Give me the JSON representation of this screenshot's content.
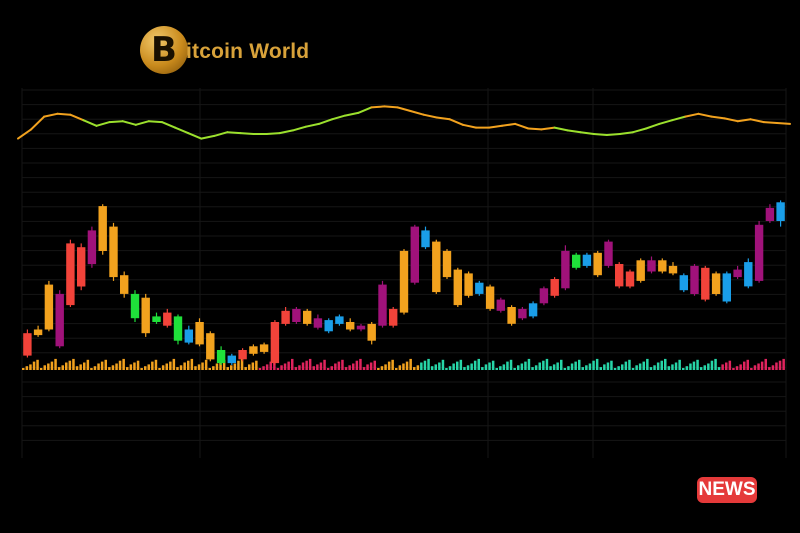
{
  "brand": {
    "logo_glyph": "B",
    "logo_text": "itcoin World",
    "logo_color": "#d8a23a"
  },
  "badge": {
    "label": "NEWS",
    "color": "#e53a3a"
  },
  "chart_data": {
    "type": "candlestick",
    "grid": true,
    "ylim": [
      0,
      100
    ],
    "line_ylim": [
      0,
      100
    ],
    "line": {
      "values": [
        58,
        68,
        82,
        85,
        84,
        78,
        72,
        76,
        77,
        73,
        77,
        76,
        70,
        64,
        58,
        61,
        65,
        64,
        63,
        63,
        64,
        67,
        71,
        74,
        79,
        83,
        86,
        92,
        93,
        92,
        88,
        84,
        81,
        79,
        73,
        70,
        70,
        72,
        74,
        69,
        68,
        70,
        67,
        65,
        63,
        62,
        63,
        65,
        69,
        74,
        78,
        82,
        85,
        82,
        80,
        77,
        79,
        76,
        75,
        74
      ],
      "colors": [
        "#f2a21e",
        "#f2a21e",
        "#f2a21e",
        "#f2a21e",
        "#f2a21e",
        "#9be02d",
        "#9be02d",
        "#9be02d",
        "#9be02d",
        "#9be02d",
        "#9be02d",
        "#9be02d",
        "#9be02d",
        "#9be02d",
        "#9be02d",
        "#9be02d",
        "#9be02d",
        "#9be02d",
        "#9be02d",
        "#9be02d",
        "#9be02d",
        "#9be02d",
        "#9be02d",
        "#9be02d",
        "#9be02d",
        "#9be02d",
        "#9be02d",
        "#f2a21e",
        "#f2a21e",
        "#f2a21e",
        "#f2a21e",
        "#f2a21e",
        "#f2a21e",
        "#f2a21e",
        "#f2a21e",
        "#f2a21e",
        "#f2a21e",
        "#f2a21e",
        "#f2a21e",
        "#f2a21e",
        "#f2a21e",
        "#9be02d",
        "#9be02d",
        "#9be02d",
        "#9be02d",
        "#9be02d",
        "#9be02d",
        "#9be02d",
        "#9be02d",
        "#9be02d",
        "#9be02d",
        "#f2a21e",
        "#f2a21e",
        "#f2a21e",
        "#f2a21e",
        "#f2a21e",
        "#f2a21e",
        "#f2a21e",
        "#f2a21e",
        "#f2a21e"
      ]
    },
    "candles": [
      {
        "o": 5,
        "c": 17,
        "h": 19,
        "l": 4,
        "color": "#f2433a"
      },
      {
        "o": 16,
        "c": 19,
        "h": 21,
        "l": 15,
        "color": "#f2a21e"
      },
      {
        "o": 19,
        "c": 43,
        "h": 45,
        "l": 18,
        "color": "#f2a21e"
      },
      {
        "o": 38,
        "c": 10,
        "h": 40,
        "l": 9,
        "color": "#a0127a"
      },
      {
        "o": 32,
        "c": 65,
        "h": 67,
        "l": 31,
        "color": "#f2433a"
      },
      {
        "o": 63,
        "c": 42,
        "h": 65,
        "l": 40,
        "color": "#f2433a"
      },
      {
        "o": 54,
        "c": 72,
        "h": 74,
        "l": 52,
        "color": "#a0127a"
      },
      {
        "o": 85,
        "c": 61,
        "h": 86,
        "l": 59,
        "color": "#f2a21e"
      },
      {
        "o": 74,
        "c": 47,
        "h": 76,
        "l": 45,
        "color": "#f2a21e"
      },
      {
        "o": 48,
        "c": 38,
        "h": 50,
        "l": 36,
        "color": "#f2a21e"
      },
      {
        "o": 38,
        "c": 25,
        "h": 40,
        "l": 23,
        "color": "#1fe03a"
      },
      {
        "o": 36,
        "c": 17,
        "h": 38,
        "l": 15,
        "color": "#f2a21e"
      },
      {
        "o": 26,
        "c": 23,
        "h": 28,
        "l": 22,
        "color": "#1fe03a"
      },
      {
        "o": 28,
        "c": 21,
        "h": 30,
        "l": 20,
        "color": "#f2433a"
      },
      {
        "o": 26,
        "c": 13,
        "h": 27,
        "l": 11,
        "color": "#1fe03a"
      },
      {
        "o": 19,
        "c": 12,
        "h": 21,
        "l": 11,
        "color": "#1a9ee8"
      },
      {
        "o": 23,
        "c": 11,
        "h": 25,
        "l": 10,
        "color": "#f2a21e"
      },
      {
        "o": 17,
        "c": 3,
        "h": 18,
        "l": 2,
        "color": "#f2a21e"
      },
      {
        "o": 8,
        "c": 1,
        "h": 10,
        "l": 0,
        "color": "#1fe03a"
      },
      {
        "o": 5,
        "c": 1,
        "h": 6,
        "l": 0,
        "color": "#1a9ee8"
      },
      {
        "o": 8,
        "c": 3,
        "h": 9,
        "l": 2,
        "color": "#f2433a"
      },
      {
        "o": 6,
        "c": 10,
        "h": 11,
        "l": 5,
        "color": "#f2a21e"
      },
      {
        "o": 7,
        "c": 11,
        "h": 12,
        "l": 6,
        "color": "#f2a21e"
      },
      {
        "o": 23,
        "c": 1,
        "h": 24,
        "l": 0,
        "color": "#f2433a"
      },
      {
        "o": 22,
        "c": 29,
        "h": 31,
        "l": 21,
        "color": "#f2433a"
      },
      {
        "o": 23,
        "c": 30,
        "h": 31,
        "l": 22,
        "color": "#a0127a"
      },
      {
        "o": 29,
        "c": 22,
        "h": 30,
        "l": 21,
        "color": "#f2a21e"
      },
      {
        "o": 20,
        "c": 25,
        "h": 27,
        "l": 19,
        "color": "#a0127a"
      },
      {
        "o": 24,
        "c": 18,
        "h": 25,
        "l": 17,
        "color": "#1a9ee8"
      },
      {
        "o": 22,
        "c": 26,
        "h": 27,
        "l": 21,
        "color": "#1a9ee8"
      },
      {
        "o": 19,
        "c": 23,
        "h": 25,
        "l": 18,
        "color": "#f2a21e"
      },
      {
        "o": 21,
        "c": 19,
        "h": 22,
        "l": 18,
        "color": "#a0127a"
      },
      {
        "o": 13,
        "c": 22,
        "h": 23,
        "l": 11,
        "color": "#f2a21e"
      },
      {
        "o": 21,
        "c": 43,
        "h": 45,
        "l": 20,
        "color": "#a0127a"
      },
      {
        "o": 21,
        "c": 30,
        "h": 31,
        "l": 20,
        "color": "#f2433a"
      },
      {
        "o": 28,
        "c": 61,
        "h": 62,
        "l": 27,
        "color": "#f2a21e"
      },
      {
        "o": 74,
        "c": 44,
        "h": 75,
        "l": 43,
        "color": "#a0127a"
      },
      {
        "o": 72,
        "c": 63,
        "h": 74,
        "l": 62,
        "color": "#1a9ee8"
      },
      {
        "o": 66,
        "c": 39,
        "h": 67,
        "l": 38,
        "color": "#f2a21e"
      },
      {
        "o": 61,
        "c": 47,
        "h": 62,
        "l": 46,
        "color": "#f2a21e"
      },
      {
        "o": 51,
        "c": 32,
        "h": 52,
        "l": 31,
        "color": "#f2a21e"
      },
      {
        "o": 49,
        "c": 37,
        "h": 50,
        "l": 36,
        "color": "#f2a21e"
      },
      {
        "o": 44,
        "c": 38,
        "h": 45,
        "l": 37,
        "color": "#1a9ee8"
      },
      {
        "o": 42,
        "c": 30,
        "h": 43,
        "l": 29,
        "color": "#f2a21e"
      },
      {
        "o": 35,
        "c": 29,
        "h": 36,
        "l": 28,
        "color": "#a0127a"
      },
      {
        "o": 31,
        "c": 22,
        "h": 32,
        "l": 21,
        "color": "#f2a21e"
      },
      {
        "o": 30,
        "c": 25,
        "h": 31,
        "l": 24,
        "color": "#a0127a"
      },
      {
        "o": 26,
        "c": 33,
        "h": 34,
        "l": 25,
        "color": "#1a9ee8"
      },
      {
        "o": 33,
        "c": 41,
        "h": 42,
        "l": 32,
        "color": "#a0127a"
      },
      {
        "o": 37,
        "c": 46,
        "h": 47,
        "l": 36,
        "color": "#f2433a"
      },
      {
        "o": 41,
        "c": 61,
        "h": 64,
        "l": 40,
        "color": "#a0127a"
      },
      {
        "o": 59,
        "c": 52,
        "h": 60,
        "l": 51,
        "color": "#1fe03a"
      },
      {
        "o": 59,
        "c": 53,
        "h": 60,
        "l": 52,
        "color": "#1a9ee8"
      },
      {
        "o": 48,
        "c": 60,
        "h": 61,
        "l": 47,
        "color": "#f2a21e"
      },
      {
        "o": 66,
        "c": 53,
        "h": 67,
        "l": 52,
        "color": "#a0127a"
      },
      {
        "o": 54,
        "c": 42,
        "h": 55,
        "l": 41,
        "color": "#f2433a"
      },
      {
        "o": 42,
        "c": 50,
        "h": 51,
        "l": 41,
        "color": "#f2433a"
      },
      {
        "o": 45,
        "c": 56,
        "h": 57,
        "l": 44,
        "color": "#f2a21e"
      },
      {
        "o": 50,
        "c": 56,
        "h": 58,
        "l": 49,
        "color": "#a0127a"
      },
      {
        "o": 56,
        "c": 50,
        "h": 57,
        "l": 49,
        "color": "#f2a21e"
      },
      {
        "o": 53,
        "c": 49,
        "h": 55,
        "l": 48,
        "color": "#f2a21e"
      },
      {
        "o": 48,
        "c": 40,
        "h": 49,
        "l": 39,
        "color": "#1a9ee8"
      },
      {
        "o": 38,
        "c": 53,
        "h": 54,
        "l": 37,
        "color": "#a0127a"
      },
      {
        "o": 52,
        "c": 35,
        "h": 53,
        "l": 34,
        "color": "#f2433a"
      },
      {
        "o": 38,
        "c": 49,
        "h": 50,
        "l": 37,
        "color": "#f2a21e"
      },
      {
        "o": 34,
        "c": 49,
        "h": 50,
        "l": 33,
        "color": "#1a9ee8"
      },
      {
        "o": 47,
        "c": 51,
        "h": 53,
        "l": 46,
        "color": "#a0127a"
      },
      {
        "o": 42,
        "c": 55,
        "h": 57,
        "l": 41,
        "color": "#1a9ee8"
      },
      {
        "o": 45,
        "c": 75,
        "h": 77,
        "l": 44,
        "color": "#a0127a"
      },
      {
        "o": 77,
        "c": 84,
        "h": 86,
        "l": 76,
        "color": "#a0127a"
      },
      {
        "o": 77,
        "c": 87,
        "h": 88,
        "l": 74,
        "color": "#1a9ee8"
      }
    ],
    "volume_colors": [
      "#f2a21e",
      "#f2a21e",
      "#f2a21e",
      "#f2a21e",
      "#f2a21e",
      "#f2a21e",
      "#f2a21e",
      "#f2a21e",
      "#f2a21e",
      "#f2a21e",
      "#f2a21e",
      "#f2a21e",
      "#f2a21e",
      "#f2a21e",
      "#f2a21e",
      "#f2a21e",
      "#f2a21e",
      "#f2a21e",
      "#f2a21e",
      "#f2a21e",
      "#f2a21e",
      "#f2a21e",
      "#e0245e",
      "#e0245e",
      "#e0245e",
      "#e0245e",
      "#e0245e",
      "#e0245e",
      "#e0245e",
      "#e0245e",
      "#e0245e",
      "#e0245e",
      "#e0245e",
      "#f2a21e",
      "#f2a21e",
      "#f2a21e",
      "#f2a21e",
      "#27d6a8",
      "#27d6a8",
      "#27d6a8",
      "#27d6a8",
      "#27d6a8",
      "#27d6a8",
      "#27d6a8",
      "#27d6a8",
      "#27d6a8",
      "#27d6a8",
      "#27d6a8",
      "#27d6a8",
      "#27d6a8",
      "#27d6a8",
      "#27d6a8",
      "#27d6a8",
      "#27d6a8",
      "#27d6a8",
      "#27d6a8",
      "#27d6a8",
      "#27d6a8",
      "#27d6a8",
      "#27d6a8",
      "#27d6a8",
      "#27d6a8",
      "#27d6a8",
      "#27d6a8",
      "#27d6a8",
      "#e0245e",
      "#e0245e",
      "#e0245e",
      "#e0245e",
      "#e0245e",
      "#e0245e"
    ]
  }
}
